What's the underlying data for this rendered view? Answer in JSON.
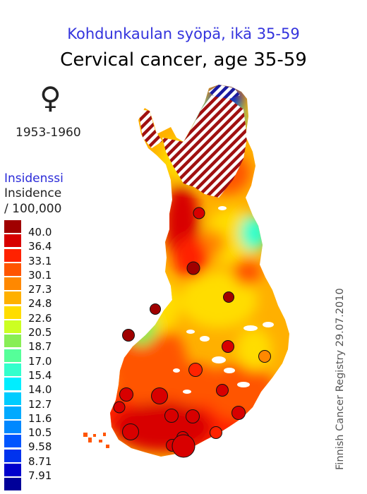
{
  "title_fi": "Kohdunkaulan syöpä, ikä 35-59",
  "title_en": "Cervical cancer, age 35-59",
  "sex_symbol": "♀",
  "period": "1953-1960",
  "legend": {
    "title_fi": "Insidenssi",
    "title_en": "Insidence",
    "unit": "/ 100,000",
    "items": [
      {
        "label": "40.0",
        "color": "#a00000"
      },
      {
        "label": "36.4",
        "color": "#d80000"
      },
      {
        "label": "33.1",
        "color": "#ff2200"
      },
      {
        "label": "30.1",
        "color": "#ff5500"
      },
      {
        "label": "27.3",
        "color": "#ff8800"
      },
      {
        "label": "24.8",
        "color": "#ffb000"
      },
      {
        "label": "22.6",
        "color": "#ffdd00"
      },
      {
        "label": "20.5",
        "color": "#ccff22"
      },
      {
        "label": "18.7",
        "color": "#88ee55"
      },
      {
        "label": "17.0",
        "color": "#55ff99"
      },
      {
        "label": "15.4",
        "color": "#33ffcc"
      },
      {
        "label": "14.0",
        "color": "#00eeff"
      },
      {
        "label": "12.7",
        "color": "#00ccff"
      },
      {
        "label": "11.6",
        "color": "#00aaff"
      },
      {
        "label": "10.5",
        "color": "#0088ff"
      },
      {
        "label": "9.58",
        "color": "#0055ff"
      },
      {
        "label": "8.71",
        "color": "#0033ee"
      },
      {
        "label": "7.91",
        "color": "#0000cc"
      },
      {
        "label": "",
        "color": "#000099"
      }
    ]
  },
  "credit": "Finnish Cancer Registry 29.07.2010"
}
